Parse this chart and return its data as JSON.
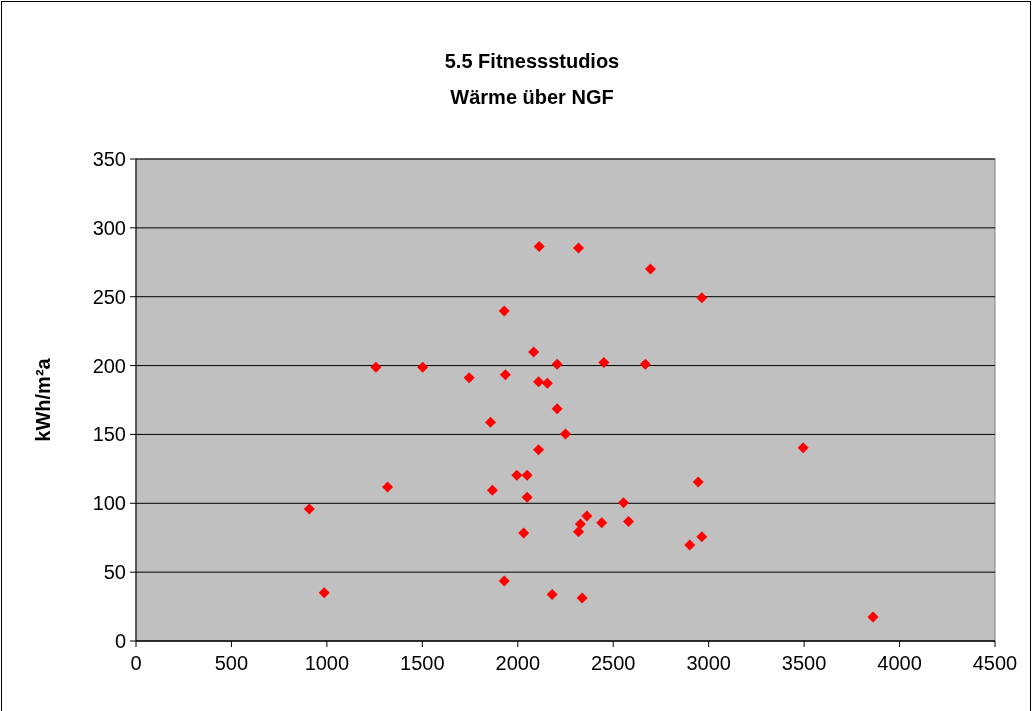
{
  "chart_data": {
    "type": "scatter",
    "title": "5.5 Fitnessstudios",
    "subtitle": "Wärme über NGF",
    "ylabel": "kWh/m²a",
    "x": [
      2112,
      2318,
      1929,
      2083,
      1257,
      1502,
      2206,
      2451,
      1745,
      1935,
      2109,
      2155,
      2206,
      1857,
      2250,
      2109,
      1995,
      2049,
      1318,
      1867,
      2049,
      908,
      2362,
      2328,
      2318,
      2440,
      2031,
      1929,
      986,
      2180,
      2337,
      2695,
      2964,
      2668,
      3495,
      2945,
      2554,
      2580,
      2964,
      2901,
      3861
    ],
    "series": [
      {
        "color": "#ff0000",
        "values": [
          286.5,
          285.3,
          239.6,
          209.8,
          198.7,
          198.7,
          201,
          202.2,
          191.1,
          193.4,
          188.3,
          187.1,
          168.7,
          158.8,
          150.3,
          138.9,
          120.3,
          120.3,
          111.8,
          109.4,
          104.3,
          95.8,
          90.8,
          84.9,
          79.4,
          85.9,
          78.4,
          43.6,
          35.1,
          33.7,
          31.2,
          270.2,
          249.3,
          201,
          140.3,
          115.4,
          100.4,
          86.7,
          75.7,
          69.7,
          17.4
        ]
      }
    ],
    "xlim": [
      0,
      4500
    ],
    "xticks": [
      0,
      500,
      1000,
      1500,
      2000,
      2500,
      3000,
      3500,
      4000,
      4500
    ],
    "ylim": [
      0,
      350
    ],
    "yticks": [
      0,
      50,
      100,
      150,
      200,
      250,
      300,
      350
    ],
    "grid": "y",
    "marker": "diamond"
  }
}
